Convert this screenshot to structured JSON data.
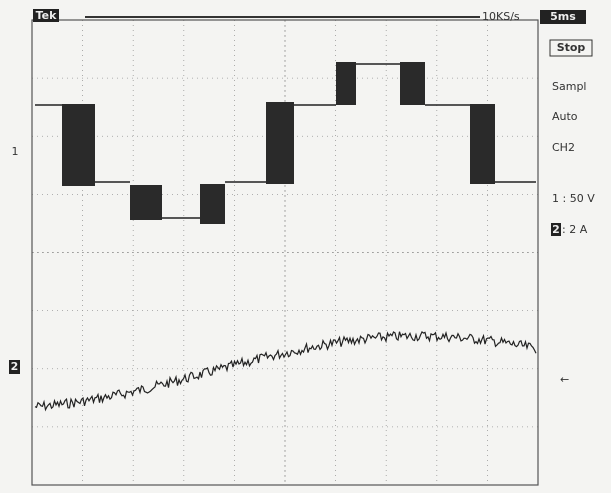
{
  "header": {
    "logo": "Tek",
    "sample_rate": "10KS/s",
    "timebase": "5ms"
  },
  "side_panel": {
    "status": "Stop",
    "mode": "Sampl",
    "trigger": "Auto",
    "source": "CH2",
    "ch1_scale": "1 : 50 V",
    "ch2_channel": "2",
    "ch2_scale": ": 2 A"
  },
  "markers": {
    "ch1": "1",
    "ch2": "2"
  }
}
